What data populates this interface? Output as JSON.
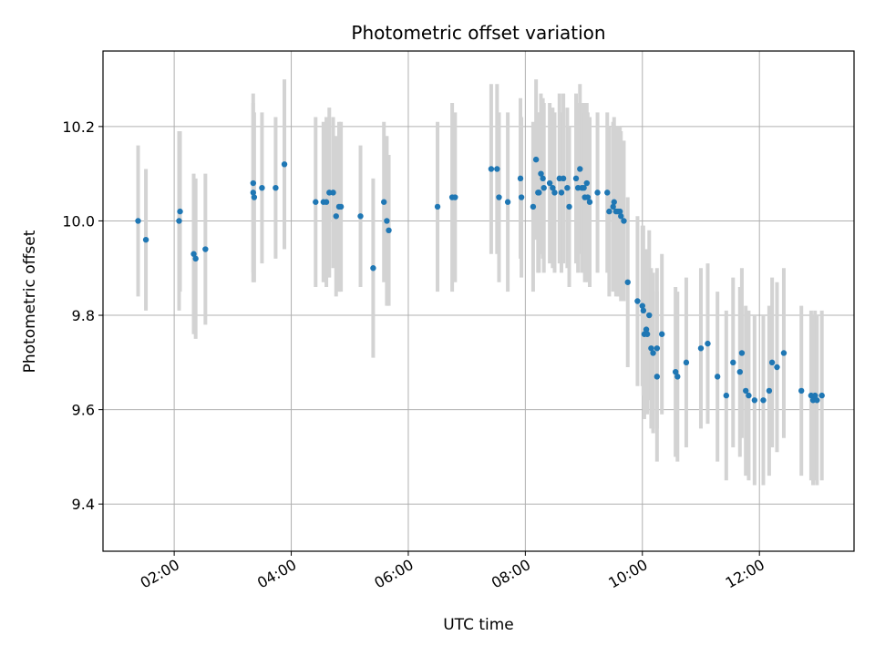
{
  "chart_data": {
    "type": "scatter",
    "title": "Photometric offset variation",
    "xlabel": "UTC time",
    "ylabel": "Photometric offset",
    "x_axis": {
      "format": "HH:MM",
      "range": [
        "00:47",
        "13:37"
      ],
      "ticks": [
        "02:00",
        "04:00",
        "06:00",
        "08:00",
        "10:00",
        "12:00"
      ]
    },
    "y_axis": {
      "range": [
        9.3,
        10.36
      ],
      "ticks": [
        "9.4",
        "9.6",
        "9.8",
        "10.0",
        "10.2"
      ]
    },
    "grid": true,
    "colors": {
      "points": "#1f77b4",
      "errorbars": "#d3d3d3",
      "grid": "#b0b0b0"
    },
    "series": [
      {
        "x": [
          "01:23",
          "01:31",
          "02:05",
          "02:06",
          "02:20",
          "02:22",
          "02:32",
          "03:21",
          "03:21",
          "03:22",
          "03:30",
          "03:44",
          "03:53",
          "04:25",
          "04:33",
          "04:36",
          "04:39",
          "04:43",
          "04:46",
          "04:49",
          "04:51",
          "05:11",
          "05:24",
          "05:35",
          "05:38",
          "05:40",
          "06:30",
          "06:45",
          "06:48",
          "07:25",
          "07:31",
          "07:33",
          "07:42",
          "07:55",
          "07:56",
          "08:08",
          "08:11",
          "08:13",
          "08:14",
          "08:16",
          "08:18",
          "08:19",
          "08:25",
          "08:28",
          "08:30",
          "08:35",
          "08:37",
          "08:39",
          "08:43",
          "08:45",
          "08:52",
          "08:54",
          "08:56",
          "08:58",
          "09:00",
          "09:01",
          "09:03",
          "09:04",
          "09:06",
          "09:14",
          "09:24",
          "09:26",
          "09:30",
          "09:31",
          "09:33",
          "09:35",
          "09:37",
          "09:38",
          "09:41",
          "09:45",
          "09:55",
          "10:00",
          "10:01",
          "10:02",
          "10:04",
          "10:05",
          "10:07",
          "10:09",
          "10:11",
          "10:15",
          "10:15",
          "10:20",
          "10:34",
          "10:36",
          "10:45",
          "11:00",
          "11:07",
          "11:17",
          "11:26",
          "11:33",
          "11:40",
          "11:42",
          "11:46",
          "11:49",
          "11:55",
          "12:04",
          "12:10",
          "12:13",
          "12:18",
          "12:25",
          "12:43",
          "12:53",
          "12:55",
          "12:57",
          "12:59",
          "13:04"
        ],
        "y": [
          10.0,
          9.96,
          10.0,
          10.02,
          9.93,
          9.92,
          9.94,
          10.08,
          10.06,
          10.05,
          10.07,
          10.07,
          10.12,
          10.04,
          10.04,
          10.04,
          10.06,
          10.06,
          10.01,
          10.03,
          10.03,
          10.01,
          9.9,
          10.04,
          10.0,
          9.98,
          10.03,
          10.05,
          10.05,
          10.11,
          10.11,
          10.05,
          10.04,
          10.09,
          10.05,
          10.03,
          10.13,
          10.06,
          10.06,
          10.1,
          10.09,
          10.07,
          10.08,
          10.07,
          10.06,
          10.09,
          10.06,
          10.09,
          10.07,
          10.03,
          10.09,
          10.07,
          10.11,
          10.07,
          10.07,
          10.05,
          10.08,
          10.05,
          10.04,
          10.06,
          10.06,
          10.02,
          10.03,
          10.04,
          10.02,
          10.02,
          10.02,
          10.01,
          10.0,
          9.87,
          9.83,
          9.82,
          9.81,
          9.76,
          9.77,
          9.76,
          9.8,
          9.73,
          9.72,
          9.67,
          9.73,
          9.76,
          9.68,
          9.67,
          9.7,
          9.73,
          9.74,
          9.67,
          9.63,
          9.7,
          9.68,
          9.72,
          9.64,
          9.63,
          9.62,
          9.62,
          9.64,
          9.7,
          9.69,
          9.72,
          9.64,
          9.63,
          9.62,
          9.63,
          9.62,
          9.63
        ],
        "yerr": [
          0.16,
          0.15,
          0.19,
          0.17,
          0.17,
          0.17,
          0.16,
          0.19,
          0.19,
          0.18,
          0.16,
          0.15,
          0.18,
          0.18,
          0.17,
          0.18,
          0.18,
          0.16,
          0.17,
          0.18,
          0.18,
          0.15,
          0.19,
          0.17,
          0.18,
          0.16,
          0.18,
          0.2,
          0.18,
          0.18,
          0.18,
          0.18,
          0.19,
          0.17,
          0.17,
          0.18,
          0.17,
          0.17,
          0.17,
          0.17,
          0.17,
          0.18,
          0.17,
          0.17,
          0.17,
          0.18,
          0.17,
          0.18,
          0.17,
          0.17,
          0.18,
          0.18,
          0.18,
          0.18,
          0.18,
          0.18,
          0.17,
          0.18,
          0.18,
          0.17,
          0.17,
          0.18,
          0.18,
          0.18,
          0.18,
          0.18,
          0.18,
          0.18,
          0.17,
          0.18,
          0.18,
          0.17,
          0.18,
          0.18,
          0.17,
          0.17,
          0.18,
          0.17,
          0.17,
          0.18,
          0.17,
          0.17,
          0.18,
          0.18,
          0.18,
          0.17,
          0.17,
          0.18,
          0.18,
          0.18,
          0.18,
          0.18,
          0.18,
          0.18,
          0.18,
          0.18,
          0.18,
          0.18,
          0.18,
          0.18,
          0.18,
          0.18,
          0.18,
          0.18,
          0.18,
          0.18
        ]
      }
    ]
  }
}
